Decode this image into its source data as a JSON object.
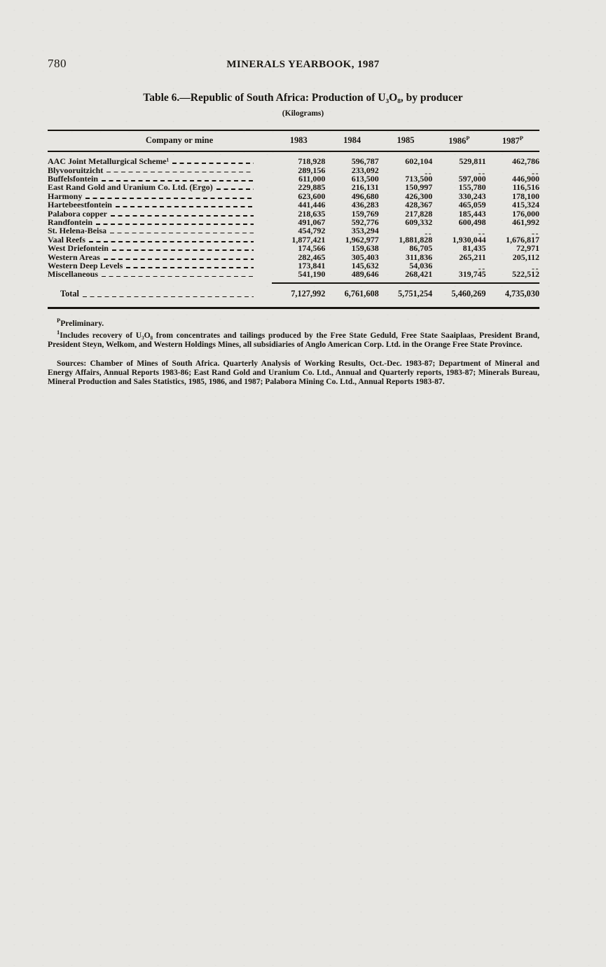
{
  "page": {
    "page_number": "780",
    "running_head": "MINERALS YEARBOOK, 1987"
  },
  "table": {
    "title": "Table 6.—Republic of South Africa: Production of U₃O₈, by producer",
    "unit_note": "(Kilograms)",
    "columns": [
      {
        "label": "Company or mine",
        "sup": ""
      },
      {
        "label": "1983",
        "sup": ""
      },
      {
        "label": "1984",
        "sup": ""
      },
      {
        "label": "1985",
        "sup": ""
      },
      {
        "label": "1986",
        "sup": "P"
      },
      {
        "label": "1987",
        "sup": "P"
      }
    ],
    "empty_cell": "--",
    "rows": [
      {
        "name": "AAC Joint Metallurgical Scheme¹",
        "values": [
          "718,928",
          "596,787",
          "602,104",
          "529,811",
          "462,786"
        ]
      },
      {
        "name": "Blyvooruitzicht",
        "values": [
          "289,156",
          "233,092",
          "--",
          "--",
          "--"
        ]
      },
      {
        "name": "Buffelsfontein",
        "values": [
          "611,000",
          "613,500",
          "713,500",
          "597,000",
          "446,900"
        ]
      },
      {
        "name": "East Rand Gold and Uranium Co. Ltd. (Ergo)",
        "values": [
          "229,885",
          "216,131",
          "150,997",
          "155,780",
          "116,516"
        ]
      },
      {
        "name": "Harmony",
        "values": [
          "623,600",
          "496,680",
          "426,300",
          "330,243",
          "178,100"
        ]
      },
      {
        "name": "Hartebeestfontein",
        "values": [
          "441,446",
          "436,283",
          "428,367",
          "465,059",
          "415,324"
        ]
      },
      {
        "name": "Palabora copper",
        "values": [
          "218,635",
          "159,769",
          "217,828",
          "185,443",
          "176,000"
        ]
      },
      {
        "name": "Randfontein",
        "values": [
          "491,067",
          "592,776",
          "609,332",
          "600,498",
          "461,992"
        ]
      },
      {
        "name": "St. Helena-Beisa",
        "values": [
          "454,792",
          "353,294",
          "--",
          "--",
          "--"
        ]
      },
      {
        "name": "Vaal Reefs",
        "values": [
          "1,877,421",
          "1,962,977",
          "1,881,828",
          "1,930,044",
          "1,676,817"
        ]
      },
      {
        "name": "West Driefontein",
        "values": [
          "174,566",
          "159,638",
          "86,705",
          "81,435",
          "72,971"
        ]
      },
      {
        "name": "Western Areas",
        "values": [
          "282,465",
          "305,403",
          "311,836",
          "265,211",
          "205,112"
        ]
      },
      {
        "name": "Western Deep Levels",
        "values": [
          "173,841",
          "145,632",
          "54,036",
          "--",
          "--"
        ]
      },
      {
        "name": "Miscellaneous",
        "values": [
          "541,190",
          "489,646",
          "268,421",
          "319,745",
          "522,512"
        ]
      }
    ],
    "total": {
      "label": "Total",
      "values": [
        "7,127,992",
        "6,761,608",
        "5,751,254",
        "5,460,269",
        "4,735,030"
      ]
    }
  },
  "footnotes": {
    "preliminary_sup": "P",
    "preliminary": "Preliminary.",
    "note1_sup": "1",
    "note1": "Includes recovery of U₃O₈ from concentrates and tailings produced by the Free State Geduld, Free State Saaiplaas, President Brand, President Steyn, Welkom, and Western Holdings Mines, all subsidiaries of Anglo American Corp. Ltd. in the Orange Free State Province.",
    "sources": "Sources: Chamber of Mines of South Africa. Quarterly Analysis of Working Results, Oct.-Dec. 1983-87; Department of Mineral and Energy Affairs, Annual Reports 1983-86; East Rand Gold and Uranium Co. Ltd., Annual and Quarterly reports, 1983-87; Minerals Bureau, Mineral Production and Sales Statistics, 1985, 1986, and 1987; Palabora Mining Co. Ltd., Annual Reports 1983-87."
  }
}
